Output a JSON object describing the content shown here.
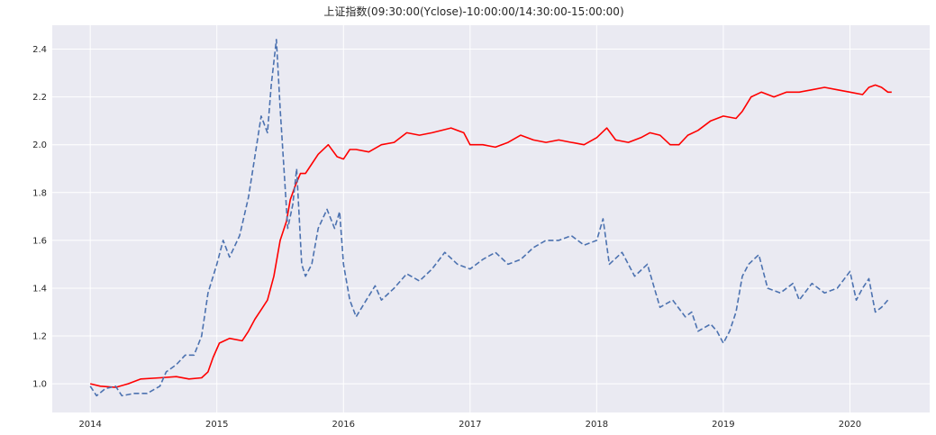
{
  "chart_data": {
    "type": "line",
    "title": "上证指数(09:30:00(Yclose)-10:00:00/14:30:00-15:00:00)",
    "xlabel": "",
    "ylabel": "",
    "x_ticks": [
      "2014",
      "2015",
      "2016",
      "2017",
      "2018",
      "2019",
      "2020"
    ],
    "y_ticks": [
      "1.0",
      "1.2",
      "1.4",
      "1.6",
      "1.8",
      "2.0",
      "2.2",
      "2.4"
    ],
    "xlim": [
      2013.7,
      2020.63
    ],
    "ylim": [
      0.88,
      2.5
    ],
    "grid": true,
    "background_color": "#eaeaf2",
    "series": [
      {
        "color": "#ff0000",
        "style": "solid",
        "points": [
          [
            2014.0,
            1.0
          ],
          [
            2014.08,
            0.99
          ],
          [
            2014.2,
            0.985
          ],
          [
            2014.3,
            1.0
          ],
          [
            2014.4,
            1.02
          ],
          [
            2014.55,
            1.025
          ],
          [
            2014.68,
            1.03
          ],
          [
            2014.78,
            1.02
          ],
          [
            2014.88,
            1.025
          ],
          [
            2014.93,
            1.05
          ],
          [
            2014.97,
            1.11
          ],
          [
            2015.02,
            1.17
          ],
          [
            2015.1,
            1.19
          ],
          [
            2015.2,
            1.18
          ],
          [
            2015.25,
            1.22
          ],
          [
            2015.3,
            1.27
          ],
          [
            2015.35,
            1.31
          ],
          [
            2015.4,
            1.35
          ],
          [
            2015.45,
            1.45
          ],
          [
            2015.5,
            1.6
          ],
          [
            2015.55,
            1.68
          ],
          [
            2015.58,
            1.77
          ],
          [
            2015.62,
            1.83
          ],
          [
            2015.66,
            1.88
          ],
          [
            2015.7,
            1.88
          ],
          [
            2015.75,
            1.92
          ],
          [
            2015.8,
            1.96
          ],
          [
            2015.88,
            2.0
          ],
          [
            2015.95,
            1.95
          ],
          [
            2016.0,
            1.94
          ],
          [
            2016.05,
            1.98
          ],
          [
            2016.1,
            1.98
          ],
          [
            2016.2,
            1.97
          ],
          [
            2016.3,
            2.0
          ],
          [
            2016.4,
            2.01
          ],
          [
            2016.5,
            2.05
          ],
          [
            2016.6,
            2.04
          ],
          [
            2016.7,
            2.05
          ],
          [
            2016.85,
            2.07
          ],
          [
            2016.95,
            2.05
          ],
          [
            2017.0,
            2.0
          ],
          [
            2017.1,
            2.0
          ],
          [
            2017.2,
            1.99
          ],
          [
            2017.3,
            2.01
          ],
          [
            2017.4,
            2.04
          ],
          [
            2017.5,
            2.02
          ],
          [
            2017.6,
            2.01
          ],
          [
            2017.7,
            2.02
          ],
          [
            2017.8,
            2.01
          ],
          [
            2017.9,
            2.0
          ],
          [
            2018.0,
            2.03
          ],
          [
            2018.08,
            2.07
          ],
          [
            2018.15,
            2.02
          ],
          [
            2018.25,
            2.01
          ],
          [
            2018.35,
            2.03
          ],
          [
            2018.42,
            2.05
          ],
          [
            2018.5,
            2.04
          ],
          [
            2018.58,
            2.0
          ],
          [
            2018.65,
            2.0
          ],
          [
            2018.72,
            2.04
          ],
          [
            2018.8,
            2.06
          ],
          [
            2018.9,
            2.1
          ],
          [
            2019.0,
            2.12
          ],
          [
            2019.1,
            2.11
          ],
          [
            2019.15,
            2.14
          ],
          [
            2019.22,
            2.2
          ],
          [
            2019.3,
            2.22
          ],
          [
            2019.4,
            2.2
          ],
          [
            2019.5,
            2.22
          ],
          [
            2019.6,
            2.22
          ],
          [
            2019.7,
            2.23
          ],
          [
            2019.8,
            2.24
          ],
          [
            2019.9,
            2.23
          ],
          [
            2020.0,
            2.22
          ],
          [
            2020.1,
            2.21
          ],
          [
            2020.15,
            2.24
          ],
          [
            2020.2,
            2.25
          ],
          [
            2020.25,
            2.24
          ],
          [
            2020.3,
            2.22
          ],
          [
            2020.33,
            2.22
          ]
        ]
      },
      {
        "color": "#4c72b0",
        "style": "dashed",
        "points": [
          [
            2014.0,
            0.99
          ],
          [
            2014.05,
            0.95
          ],
          [
            2014.12,
            0.98
          ],
          [
            2014.2,
            0.99
          ],
          [
            2014.25,
            0.95
          ],
          [
            2014.35,
            0.96
          ],
          [
            2014.45,
            0.96
          ],
          [
            2014.55,
            0.99
          ],
          [
            2014.6,
            1.05
          ],
          [
            2014.68,
            1.08
          ],
          [
            2014.75,
            1.12
          ],
          [
            2014.82,
            1.12
          ],
          [
            2014.88,
            1.2
          ],
          [
            2014.93,
            1.38
          ],
          [
            2015.0,
            1.5
          ],
          [
            2015.05,
            1.6
          ],
          [
            2015.1,
            1.53
          ],
          [
            2015.18,
            1.62
          ],
          [
            2015.25,
            1.78
          ],
          [
            2015.3,
            1.95
          ],
          [
            2015.35,
            2.12
          ],
          [
            2015.4,
            2.05
          ],
          [
            2015.43,
            2.25
          ],
          [
            2015.47,
            2.44
          ],
          [
            2015.5,
            2.15
          ],
          [
            2015.53,
            1.9
          ],
          [
            2015.56,
            1.65
          ],
          [
            2015.6,
            1.75
          ],
          [
            2015.63,
            1.9
          ],
          [
            2015.65,
            1.7
          ],
          [
            2015.67,
            1.5
          ],
          [
            2015.7,
            1.45
          ],
          [
            2015.75,
            1.5
          ],
          [
            2015.8,
            1.65
          ],
          [
            2015.87,
            1.73
          ],
          [
            2015.93,
            1.65
          ],
          [
            2015.97,
            1.72
          ],
          [
            2016.0,
            1.5
          ],
          [
            2016.05,
            1.35
          ],
          [
            2016.1,
            1.28
          ],
          [
            2016.18,
            1.35
          ],
          [
            2016.25,
            1.41
          ],
          [
            2016.3,
            1.35
          ],
          [
            2016.4,
            1.4
          ],
          [
            2016.5,
            1.46
          ],
          [
            2016.6,
            1.43
          ],
          [
            2016.7,
            1.48
          ],
          [
            2016.8,
            1.55
          ],
          [
            2016.9,
            1.5
          ],
          [
            2017.0,
            1.48
          ],
          [
            2017.1,
            1.52
          ],
          [
            2017.2,
            1.55
          ],
          [
            2017.3,
            1.5
          ],
          [
            2017.4,
            1.52
          ],
          [
            2017.5,
            1.57
          ],
          [
            2017.6,
            1.6
          ],
          [
            2017.7,
            1.6
          ],
          [
            2017.8,
            1.62
          ],
          [
            2017.9,
            1.58
          ],
          [
            2018.0,
            1.6
          ],
          [
            2018.05,
            1.69
          ],
          [
            2018.1,
            1.5
          ],
          [
            2018.2,
            1.55
          ],
          [
            2018.3,
            1.45
          ],
          [
            2018.4,
            1.5
          ],
          [
            2018.45,
            1.41
          ],
          [
            2018.5,
            1.32
          ],
          [
            2018.6,
            1.35
          ],
          [
            2018.7,
            1.28
          ],
          [
            2018.75,
            1.3
          ],
          [
            2018.8,
            1.22
          ],
          [
            2018.9,
            1.25
          ],
          [
            2018.95,
            1.22
          ],
          [
            2019.0,
            1.17
          ],
          [
            2019.05,
            1.22
          ],
          [
            2019.1,
            1.3
          ],
          [
            2019.15,
            1.45
          ],
          [
            2019.2,
            1.5
          ],
          [
            2019.28,
            1.54
          ],
          [
            2019.35,
            1.4
          ],
          [
            2019.45,
            1.38
          ],
          [
            2019.55,
            1.42
          ],
          [
            2019.6,
            1.35
          ],
          [
            2019.7,
            1.42
          ],
          [
            2019.8,
            1.38
          ],
          [
            2019.9,
            1.4
          ],
          [
            2020.0,
            1.47
          ],
          [
            2020.05,
            1.35
          ],
          [
            2020.1,
            1.4
          ],
          [
            2020.15,
            1.44
          ],
          [
            2020.2,
            1.3
          ],
          [
            2020.25,
            1.32
          ],
          [
            2020.3,
            1.35
          ]
        ]
      }
    ]
  }
}
